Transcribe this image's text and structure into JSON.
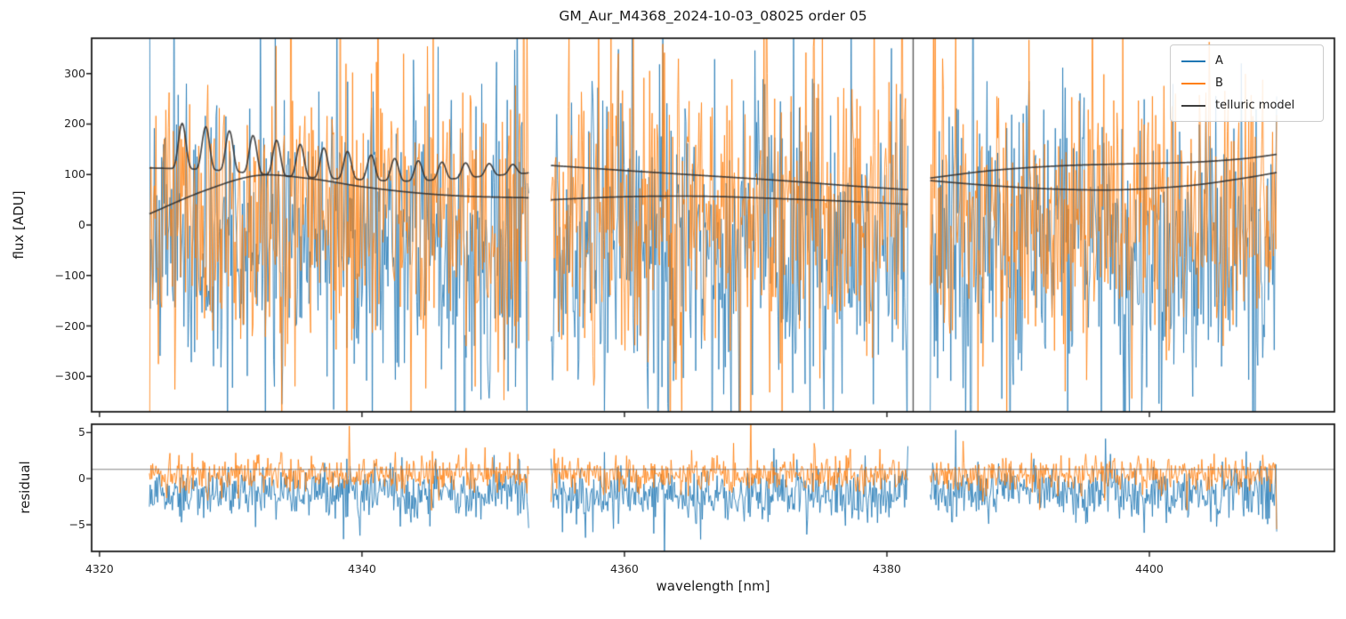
{
  "figure": {
    "title": "GM_Aur_M4368_2024-10-03_08025  order 05",
    "background": "#ffffff"
  },
  "legend": {
    "entries": [
      {
        "label": "A",
        "color": "#1f77b4"
      },
      {
        "label": "B",
        "color": "#ff7f0e"
      },
      {
        "label": "telluric model",
        "color": "#3d3d3d"
      }
    ]
  },
  "chart_data": {
    "type": "line",
    "title": "GM_Aur_M4368_2024-10-03_08025  order 05",
    "xlabel": "wavelength [nm]",
    "xlim": [
      4319.4,
      4414.1
    ],
    "xticks": [
      4320,
      4340,
      4360,
      4380,
      4400
    ],
    "xtick_labels": [
      "4320",
      "4340",
      "4360",
      "4380",
      "4400"
    ],
    "grid": false,
    "legend_position": "upper right",
    "segments": [
      [
        4323.8,
        4352.7
      ],
      [
        4354.4,
        4381.6
      ],
      [
        4383.3,
        4409.7
      ]
    ],
    "vline_x": 4382.0,
    "vline_color": "#5a5a5a",
    "panels": [
      {
        "name": "flux",
        "ylabel": "flux [ADU]",
        "ylim": [
          -370,
          370
        ],
        "yticks": [
          300,
          200,
          100,
          0,
          -100,
          -200,
          -300
        ],
        "ytick_labels": [
          "300",
          "200",
          "100",
          "0",
          "−100",
          "−200",
          "−300"
        ]
      },
      {
        "name": "residual",
        "ylabel": "residual",
        "ylim": [
          -7.9,
          5.9
        ],
        "yticks": [
          5,
          0,
          -5
        ],
        "ytick_labels": [
          "5",
          "0",
          "−5"
        ],
        "hline": 1.0,
        "hline_color": "#6f6f6f"
      }
    ],
    "series": [
      {
        "name": "A",
        "color": "#1f77b4",
        "alpha": 0.8,
        "flux_noise": {
          "mean": -40,
          "sigma": 150
        },
        "residual_noise": {
          "mean": -1.6,
          "sigma": 1.4
        }
      },
      {
        "name": "B",
        "color": "#ff7f0e",
        "alpha": 0.8,
        "flux_noise": {
          "mean": 18,
          "sigma": 138
        },
        "residual_noise": {
          "mean": 0.45,
          "sigma": 0.95
        }
      }
    ],
    "noise_heavy_tail": {
      "prob": 0.07,
      "extra": 1.6,
      "edge_boost": 2.5
    },
    "points_per_nm": 16,
    "seed": 7,
    "telluric_model": {
      "name": "telluric model",
      "color": "#2d2d2d",
      "alpha": 0.85,
      "upper_curves": [
        [
          [
            4323.8,
            113
          ],
          [
            4328,
            110
          ],
          [
            4331,
            104
          ],
          [
            4334,
            97
          ],
          [
            4337,
            93
          ],
          [
            4340,
            90
          ],
          [
            4343,
            87
          ],
          [
            4346,
            90
          ],
          [
            4349,
            96
          ],
          [
            4352.7,
            103
          ]
        ],
        [
          [
            4354.4,
            118
          ],
          [
            4360,
            108
          ],
          [
            4366,
            98
          ],
          [
            4372,
            88
          ],
          [
            4377,
            78
          ],
          [
            4381.6,
            70
          ]
        ],
        [
          [
            4383.3,
            93
          ],
          [
            4388,
            108
          ],
          [
            4393,
            117
          ],
          [
            4398,
            121
          ],
          [
            4403,
            124
          ],
          [
            4407,
            131
          ],
          [
            4409.7,
            140
          ]
        ]
      ],
      "lower_curves": [
        [
          [
            4323.8,
            22
          ],
          [
            4328,
            68
          ],
          [
            4332,
            98
          ],
          [
            4336,
            92
          ],
          [
            4340,
            76
          ],
          [
            4344,
            64
          ],
          [
            4348,
            57
          ],
          [
            4352.7,
            54
          ]
        ],
        [
          [
            4354.4,
            50
          ],
          [
            4360,
            56
          ],
          [
            4366,
            57
          ],
          [
            4372,
            52
          ],
          [
            4377,
            47
          ],
          [
            4381.6,
            41
          ]
        ],
        [
          [
            4383.3,
            88
          ],
          [
            4388,
            78
          ],
          [
            4393,
            71
          ],
          [
            4398,
            70
          ],
          [
            4403,
            78
          ],
          [
            4407,
            92
          ],
          [
            4409.7,
            104
          ]
        ]
      ],
      "oscillation": {
        "segment": 0,
        "period": 1.8,
        "start": 4325.5,
        "phase": 4325.85,
        "amp_start": 92,
        "amp_end": 16
      }
    }
  }
}
